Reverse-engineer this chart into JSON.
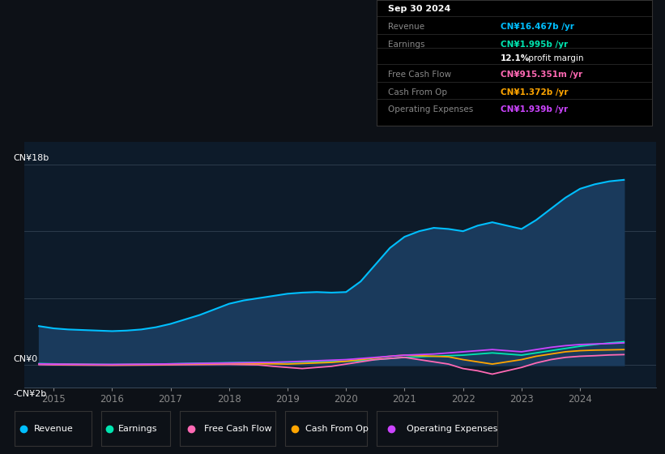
{
  "background_color": "#0d1117",
  "plot_bg_color": "#0d1b2a",
  "y_label_top": "CN¥18b",
  "y_label_zero": "CN¥0",
  "y_label_neg": "-CN¥2b",
  "x_ticks": [
    2015,
    2016,
    2017,
    2018,
    2019,
    2020,
    2021,
    2022,
    2023,
    2024
  ],
  "ylim": [
    -2000000000.0,
    20000000000.0
  ],
  "xlim_start": 2014.5,
  "xlim_end": 2025.3,
  "legend_labels": [
    "Revenue",
    "Earnings",
    "Free Cash Flow",
    "Cash From Op",
    "Operating Expenses"
  ],
  "legend_colors": [
    "#00bfff",
    "#00e5b0",
    "#ff69b4",
    "#ffa500",
    "#cc44ff"
  ],
  "tooltip": {
    "date": "Sep 30 2024",
    "Revenue": {
      "label": "Revenue",
      "value": "CN¥16.467b",
      "color": "#00bfff"
    },
    "Earnings": {
      "label": "Earnings",
      "value": "CN¥1.995b",
      "color": "#00e5b0"
    },
    "profit_margin": "12.1%",
    "profit_margin_text": " profit margin",
    "Free Cash Flow": {
      "label": "Free Cash Flow",
      "value": "CN¥915.351m",
      "color": "#ff69b4"
    },
    "Cash From Op": {
      "label": "Cash From Op",
      "value": "CN¥1.372b",
      "color": "#ffa500"
    },
    "Operating Expenses": {
      "label": "Operating Expenses",
      "value": "CN¥1.939b",
      "color": "#cc44ff"
    }
  },
  "revenue_y": [
    3.5,
    3.3,
    3.2,
    3.15,
    3.1,
    3.05,
    3.1,
    3.2,
    3.4,
    3.7,
    4.1,
    4.5,
    5.0,
    5.5,
    5.8,
    6.0,
    6.2,
    6.4,
    6.5,
    6.55,
    6.5,
    6.55,
    7.5,
    9.0,
    10.5,
    11.5,
    12.0,
    12.3,
    12.2,
    12.0,
    12.5,
    12.8,
    12.5,
    12.2,
    13.0,
    14.0,
    15.0,
    15.8,
    16.2,
    16.467,
    16.6
  ],
  "earnings_y": [
    0.15,
    0.12,
    0.1,
    0.08,
    0.07,
    0.06,
    0.07,
    0.08,
    0.1,
    0.12,
    0.15,
    0.18,
    0.2,
    0.22,
    0.24,
    0.25,
    0.26,
    0.27,
    0.28,
    0.3,
    0.32,
    0.35,
    0.4,
    0.5,
    0.6,
    0.7,
    0.75,
    0.8,
    0.85,
    0.9,
    1.0,
    1.1,
    1.0,
    0.9,
    1.1,
    1.3,
    1.5,
    1.7,
    1.85,
    1.995,
    2.1
  ],
  "fcf_y": [
    0.05,
    0.03,
    0.02,
    0.01,
    0.0,
    -0.01,
    0.0,
    0.01,
    0.02,
    0.03,
    0.04,
    0.05,
    0.06,
    0.07,
    0.05,
    0.03,
    -0.1,
    -0.2,
    -0.3,
    -0.2,
    -0.1,
    0.1,
    0.3,
    0.5,
    0.6,
    0.7,
    0.5,
    0.3,
    0.1,
    -0.3,
    -0.5,
    -0.8,
    -0.5,
    -0.2,
    0.2,
    0.5,
    0.7,
    0.8,
    0.85,
    0.915,
    0.95
  ],
  "cashop_y": [
    0.1,
    0.08,
    0.07,
    0.06,
    0.05,
    0.04,
    0.05,
    0.06,
    0.07,
    0.08,
    0.1,
    0.12,
    0.14,
    0.16,
    0.15,
    0.14,
    0.12,
    0.1,
    0.15,
    0.2,
    0.25,
    0.35,
    0.5,
    0.65,
    0.8,
    0.9,
    0.85,
    0.8,
    0.75,
    0.5,
    0.3,
    0.1,
    0.3,
    0.5,
    0.8,
    1.0,
    1.2,
    1.3,
    1.35,
    1.372,
    1.4
  ],
  "opex_y": [
    0.12,
    0.1,
    0.09,
    0.08,
    0.07,
    0.07,
    0.08,
    0.09,
    0.1,
    0.12,
    0.14,
    0.16,
    0.18,
    0.2,
    0.22,
    0.24,
    0.26,
    0.3,
    0.35,
    0.4,
    0.45,
    0.5,
    0.6,
    0.7,
    0.8,
    0.9,
    0.95,
    1.0,
    1.1,
    1.2,
    1.3,
    1.4,
    1.3,
    1.2,
    1.4,
    1.6,
    1.75,
    1.85,
    1.9,
    1.939,
    2.0
  ],
  "x_vals": [
    2014.75,
    2015.0,
    2015.25,
    2015.5,
    2015.75,
    2016.0,
    2016.25,
    2016.5,
    2016.75,
    2017.0,
    2017.25,
    2017.5,
    2017.75,
    2018.0,
    2018.25,
    2018.5,
    2018.75,
    2019.0,
    2019.25,
    2019.5,
    2019.75,
    2020.0,
    2020.25,
    2020.5,
    2020.75,
    2021.0,
    2021.25,
    2021.5,
    2021.75,
    2022.0,
    2022.25,
    2022.5,
    2022.75,
    2023.0,
    2023.25,
    2023.5,
    2023.75,
    2024.0,
    2024.25,
    2024.5,
    2024.75
  ],
  "revenue_color": "#00bfff",
  "revenue_fill": "#1a3a5c",
  "earnings_color": "#00e5b0",
  "fcf_color": "#ff69b4",
  "cashop_color": "#ffa500",
  "opex_color": "#cc44ff"
}
